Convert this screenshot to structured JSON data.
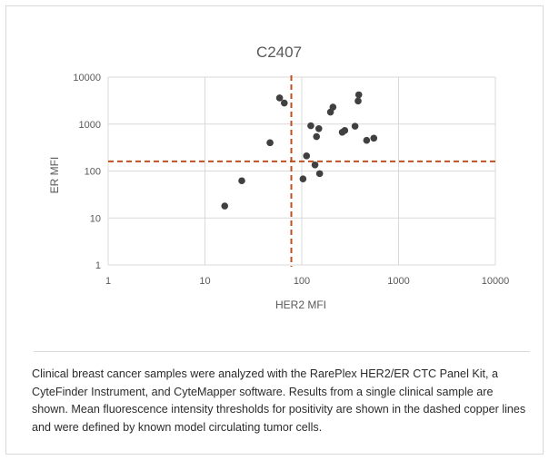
{
  "chart_data": {
    "type": "scatter",
    "title": "C2407",
    "xlabel": "HER2 MFI",
    "ylabel": "ER MFI",
    "xscale": "log",
    "yscale": "log",
    "xlim": [
      1,
      10000
    ],
    "ylim": [
      1,
      10000
    ],
    "x_ticks": [
      1,
      10,
      100,
      1000,
      10000
    ],
    "y_ticks": [
      1,
      10,
      100,
      1000,
      10000
    ],
    "x_tick_labels": [
      "1",
      "10",
      "100",
      "1000",
      "10000"
    ],
    "y_tick_labels": [
      "1",
      "10",
      "100",
      "1000",
      "10000"
    ],
    "grid": true,
    "thresholds": {
      "her2": 78,
      "er": 160
    },
    "colors": {
      "points": "#404040",
      "threshold": "#c0501e",
      "grid": "#d9d9d9"
    },
    "points": [
      {
        "x": 16,
        "y": 18
      },
      {
        "x": 24,
        "y": 62
      },
      {
        "x": 47,
        "y": 400
      },
      {
        "x": 59,
        "y": 3600
      },
      {
        "x": 66,
        "y": 2800
      },
      {
        "x": 103,
        "y": 68
      },
      {
        "x": 112,
        "y": 210
      },
      {
        "x": 124,
        "y": 920
      },
      {
        "x": 137,
        "y": 135
      },
      {
        "x": 142,
        "y": 540
      },
      {
        "x": 150,
        "y": 800
      },
      {
        "x": 153,
        "y": 88
      },
      {
        "x": 198,
        "y": 1800
      },
      {
        "x": 210,
        "y": 2300
      },
      {
        "x": 262,
        "y": 670
      },
      {
        "x": 278,
        "y": 730
      },
      {
        "x": 355,
        "y": 900
      },
      {
        "x": 382,
        "y": 3100
      },
      {
        "x": 388,
        "y": 4200
      },
      {
        "x": 468,
        "y": 450
      },
      {
        "x": 555,
        "y": 500
      }
    ]
  },
  "caption": "Clinical breast cancer samples were analyzed with the RarePlex HER2/ER CTC Panel Kit, a CyteFinder Instrument, and CyteMapper software. Results from a single clinical sample are shown. Mean fluorescence intensity thresholds for positivity are shown in the dashed copper lines and were defined by known model circulating tumor cells."
}
